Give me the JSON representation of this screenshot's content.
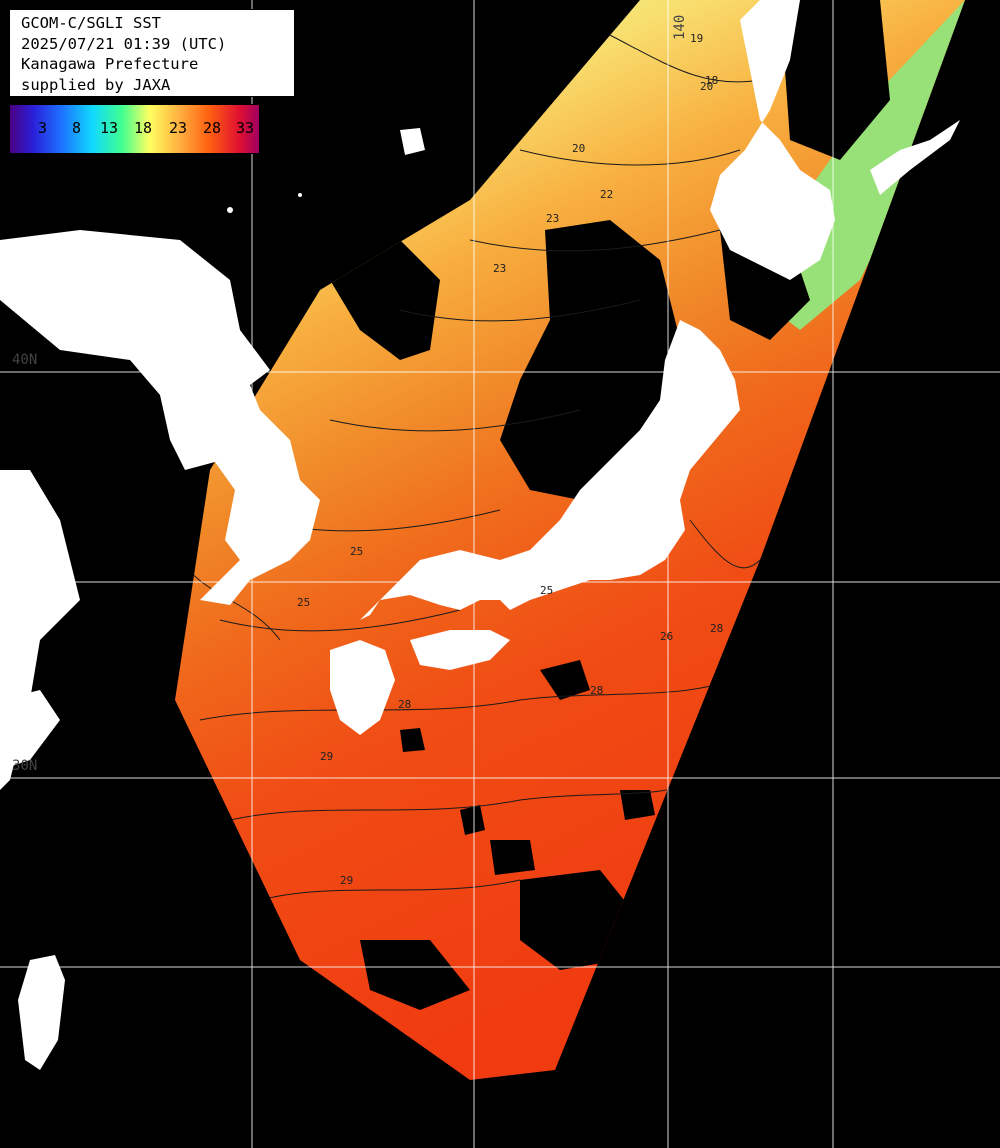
{
  "info": {
    "line1": "GCOM-C/SGLI SST",
    "line2": "2025/07/21 01:39 (UTC)",
    "line3": "Kanagawa Prefecture",
    "line4": "supplied by JAXA"
  },
  "colorbar": {
    "ticks": [
      "3",
      "8",
      "13",
      "18",
      "23",
      "28",
      "33"
    ],
    "colors": [
      "#4b0082",
      "#2b1ed8",
      "#1e6cff",
      "#10d8ff",
      "#40ff90",
      "#ffff60",
      "#ffb040",
      "#ff6010",
      "#e01030",
      "#a00060"
    ]
  },
  "grid": {
    "lat_labels": [
      "40N",
      "30N"
    ],
    "lon_labels": [
      "140"
    ]
  },
  "contour_labels": [
    "19",
    "18",
    "20",
    "20",
    "22",
    "23",
    "23",
    "25",
    "25",
    "25",
    "26",
    "28",
    "28",
    "28",
    "29",
    "29"
  ],
  "colors": {
    "land": "#ffffff",
    "nodata": "#000000",
    "grid": "#ffffff"
  }
}
